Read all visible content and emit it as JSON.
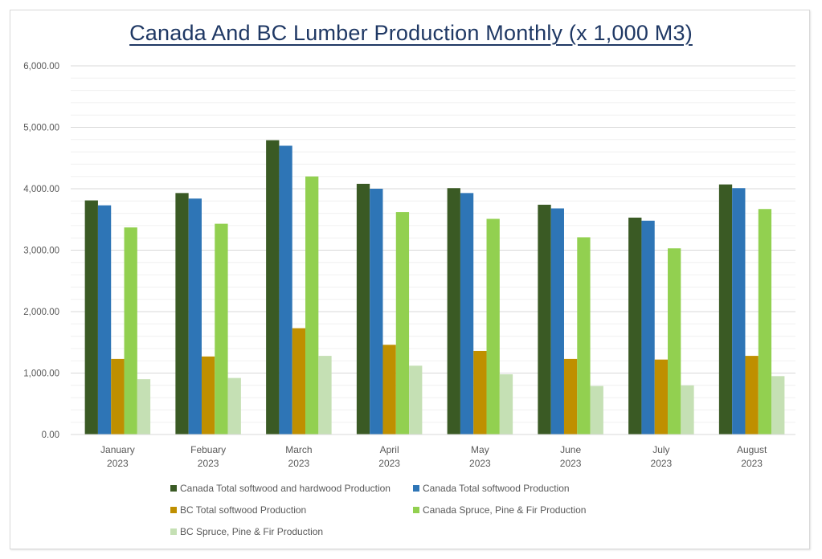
{
  "chart_data": {
    "type": "bar",
    "title": "Canada And BC Lumber Production Monthly (x 1,000 M3)",
    "xlabel": "",
    "ylabel": "",
    "ylim": [
      0,
      6000
    ],
    "y_ticks": [
      "0.00",
      "1,000.00",
      "2,000.00",
      "3,000.00",
      "4,000.00",
      "5,000.00",
      "6,000.00"
    ],
    "y_tick_values": [
      0,
      1000,
      2000,
      3000,
      4000,
      5000,
      6000
    ],
    "minor_gridlines_per_major": 5,
    "grid": true,
    "legend_position": "bottom",
    "categories": [
      {
        "line1": "January",
        "line2": "2023"
      },
      {
        "line1": "Febuary",
        "line2": "2023"
      },
      {
        "line1": "March",
        "line2": "2023"
      },
      {
        "line1": "April",
        "line2": "2023"
      },
      {
        "line1": "May",
        "line2": "2023"
      },
      {
        "line1": "June",
        "line2": "2023"
      },
      {
        "line1": "July",
        "line2": "2023"
      },
      {
        "line1": "August",
        "line2": "2023"
      }
    ],
    "series": [
      {
        "name": "Canada Total softwood and hardwood Production",
        "color": "#3a5a24",
        "values": [
          3810,
          3930,
          4790,
          4080,
          4010,
          3740,
          3530,
          4070
        ]
      },
      {
        "name": "Canada Total softwood Production",
        "color": "#2e75b6",
        "values": [
          3730,
          3840,
          4700,
          4000,
          3930,
          3680,
          3480,
          4010
        ]
      },
      {
        "name": "BC Total softwood Production",
        "color": "#bf8f00",
        "values": [
          1230,
          1270,
          1730,
          1460,
          1360,
          1230,
          1220,
          1280
        ]
      },
      {
        "name": "Canada Spruce, Pine & Fir Production",
        "color": "#92d050",
        "values": [
          3370,
          3430,
          4200,
          3620,
          3510,
          3210,
          3030,
          3670
        ]
      },
      {
        "name": "BC Spruce, Pine & Fir Production",
        "color": "#c5e0b4",
        "values": [
          900,
          920,
          1280,
          1120,
          980,
          790,
          800,
          950
        ]
      }
    ]
  }
}
